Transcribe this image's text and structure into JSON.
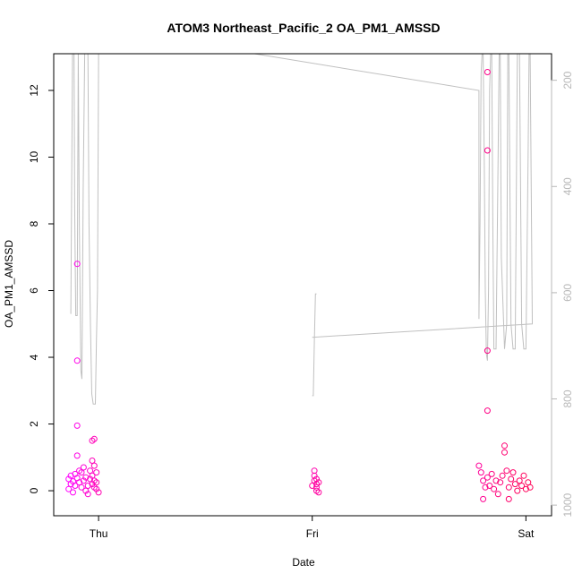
{
  "chart_data": {
    "type": "scatter",
    "title": "ATOM3 Northeast_Pacific_2 OA_PM1_AMSSD",
    "xlabel": "Date",
    "ylabel": "OA_PM1_AMSSD",
    "x_ticks": [
      {
        "label": "Thu",
        "x": 1.0
      },
      {
        "label": "Fri",
        "x": 2.0
      },
      {
        "label": "Sat",
        "x": 3.0
      }
    ],
    "xlim": [
      0.79,
      3.12
    ],
    "ylim": [
      -0.75,
      13.1
    ],
    "y_ticks": [
      0,
      2,
      4,
      6,
      8,
      10,
      12
    ],
    "right_axis": {
      "ticks": [
        200,
        400,
        600,
        800,
        1000
      ],
      "range_top": 150,
      "range_bottom": 1020,
      "color": "#b8b8b8"
    },
    "grid": false,
    "legend": "none",
    "point_color_start": "#ff00ff",
    "point_color_end": "#ff0055",
    "line_color": "#c0c0c0",
    "points": [
      [
        0.86,
        0.35
      ],
      [
        0.86,
        0.05
      ],
      [
        0.87,
        0.45
      ],
      [
        0.87,
        0.2
      ],
      [
        0.88,
        0.28
      ],
      [
        0.88,
        -0.05
      ],
      [
        0.89,
        0.5
      ],
      [
        0.89,
        0.15
      ],
      [
        0.9,
        0.38
      ],
      [
        0.9,
        6.8
      ],
      [
        0.9,
        3.9
      ],
      [
        0.9,
        1.95
      ],
      [
        0.9,
        1.05
      ],
      [
        0.91,
        0.6
      ],
      [
        0.91,
        0.25
      ],
      [
        0.92,
        0.1
      ],
      [
        0.92,
        0.55
      ],
      [
        0.93,
        0.3
      ],
      [
        0.93,
        0.7
      ],
      [
        0.94,
        0.0
      ],
      [
        0.94,
        0.4
      ],
      [
        0.95,
        0.15
      ],
      [
        0.95,
        -0.1
      ],
      [
        0.96,
        0.35
      ],
      [
        0.96,
        0.6
      ],
      [
        0.97,
        0.2
      ],
      [
        0.97,
        0.45
      ],
      [
        0.98,
        0.1
      ],
      [
        0.98,
        0.3
      ],
      [
        0.99,
        0.55
      ],
      [
        0.99,
        0.05
      ],
      [
        0.97,
        0.9
      ],
      [
        0.97,
        1.5
      ],
      [
        0.98,
        1.55
      ],
      [
        0.98,
        0.75
      ],
      [
        0.99,
        0.25
      ],
      [
        1.0,
        -0.05
      ],
      [
        2.01,
        0.6
      ],
      [
        2.01,
        0.45
      ],
      [
        2.02,
        0.35
      ],
      [
        2.02,
        0.2
      ],
      [
        2.02,
        0.1
      ],
      [
        2.02,
        0.0
      ],
      [
        2.01,
        0.3
      ],
      [
        2.0,
        0.15
      ],
      [
        2.03,
        -0.05
      ],
      [
        2.03,
        0.25
      ],
      [
        2.78,
        0.75
      ],
      [
        2.79,
        0.55
      ],
      [
        2.8,
        0.3
      ],
      [
        2.8,
        -0.25
      ],
      [
        2.81,
        0.1
      ],
      [
        2.82,
        0.4
      ],
      [
        2.82,
        12.55
      ],
      [
        2.82,
        10.2
      ],
      [
        2.82,
        4.2
      ],
      [
        2.82,
        2.4
      ],
      [
        2.83,
        0.15
      ],
      [
        2.84,
        0.5
      ],
      [
        2.85,
        0.05
      ],
      [
        2.86,
        0.3
      ],
      [
        2.87,
        -0.1
      ],
      [
        2.88,
        0.25
      ],
      [
        2.89,
        0.45
      ],
      [
        2.9,
        1.35
      ],
      [
        2.9,
        1.15
      ],
      [
        2.91,
        0.6
      ],
      [
        2.92,
        0.1
      ],
      [
        2.92,
        -0.25
      ],
      [
        2.93,
        0.35
      ],
      [
        2.94,
        0.55
      ],
      [
        2.95,
        0.2
      ],
      [
        2.96,
        0.0
      ],
      [
        2.97,
        0.3
      ],
      [
        2.98,
        0.15
      ],
      [
        2.99,
        0.45
      ],
      [
        3.0,
        0.05
      ],
      [
        3.01,
        0.25
      ],
      [
        3.02,
        0.1
      ]
    ],
    "line_segments": [
      [
        [
          0.87,
          5.45
        ],
        [
          0.87,
          5.3
        ],
        [
          0.878,
          13.1
        ],
        [
          0.885,
          13.1
        ],
        [
          0.888,
          8.5
        ],
        [
          0.893,
          5.25
        ],
        [
          0.9,
          5.25
        ],
        [
          0.905,
          13.1
        ],
        [
          0.91,
          8.0
        ],
        [
          0.917,
          3.6
        ],
        [
          0.922,
          3.35
        ],
        [
          0.928,
          9.0
        ],
        [
          0.935,
          13.1
        ],
        [
          0.95,
          13.1
        ],
        [
          0.955,
          8.0
        ],
        [
          0.962,
          5.0
        ],
        [
          0.968,
          2.9
        ],
        [
          0.975,
          2.6
        ],
        [
          0.985,
          2.6
        ],
        [
          0.99,
          4.5
        ],
        [
          0.995,
          6.0
        ],
        [
          1.0,
          13.1
        ]
      ],
      [
        [
          1.73,
          13.1
        ],
        [
          2.78,
          12.0
        ],
        [
          2.78,
          5.15
        ],
        [
          2.785,
          8.0
        ],
        [
          2.79,
          12.5
        ],
        [
          2.795,
          13.1
        ],
        [
          2.8,
          13.1
        ],
        [
          2.805,
          10.0
        ],
        [
          2.81,
          6.0
        ],
        [
          2.815,
          4.1
        ],
        [
          2.82,
          3.9
        ],
        [
          2.825,
          6.0
        ],
        [
          2.83,
          12.0
        ],
        [
          2.835,
          13.1
        ],
        [
          2.84,
          13.1
        ],
        [
          2.845,
          8.0
        ],
        [
          2.85,
          4.25
        ],
        [
          2.86,
          4.25
        ],
        [
          2.87,
          10.0
        ],
        [
          2.875,
          13.1
        ],
        [
          2.88,
          13.1
        ],
        [
          2.885,
          7.0
        ],
        [
          2.9,
          4.25
        ],
        [
          2.91,
          5.0
        ],
        [
          2.915,
          13.1
        ],
        [
          2.92,
          13.1
        ],
        [
          2.93,
          5.0
        ],
        [
          2.94,
          4.25
        ],
        [
          2.95,
          4.25
        ],
        [
          2.96,
          13.1
        ],
        [
          2.97,
          13.1
        ],
        [
          2.98,
          5.0
        ],
        [
          2.99,
          4.25
        ],
        [
          3.0,
          4.25
        ],
        [
          3.01,
          10.0
        ],
        [
          3.015,
          13.1
        ],
        [
          3.02,
          13.1
        ],
        [
          3.03,
          5.0
        ],
        [
          2.0,
          4.6
        ]
      ],
      [
        [
          2.0,
          2.85
        ],
        [
          2.005,
          2.85
        ],
        [
          2.01,
          4.5
        ],
        [
          2.015,
          5.9
        ],
        [
          2.02,
          5.9
        ]
      ]
    ]
  }
}
